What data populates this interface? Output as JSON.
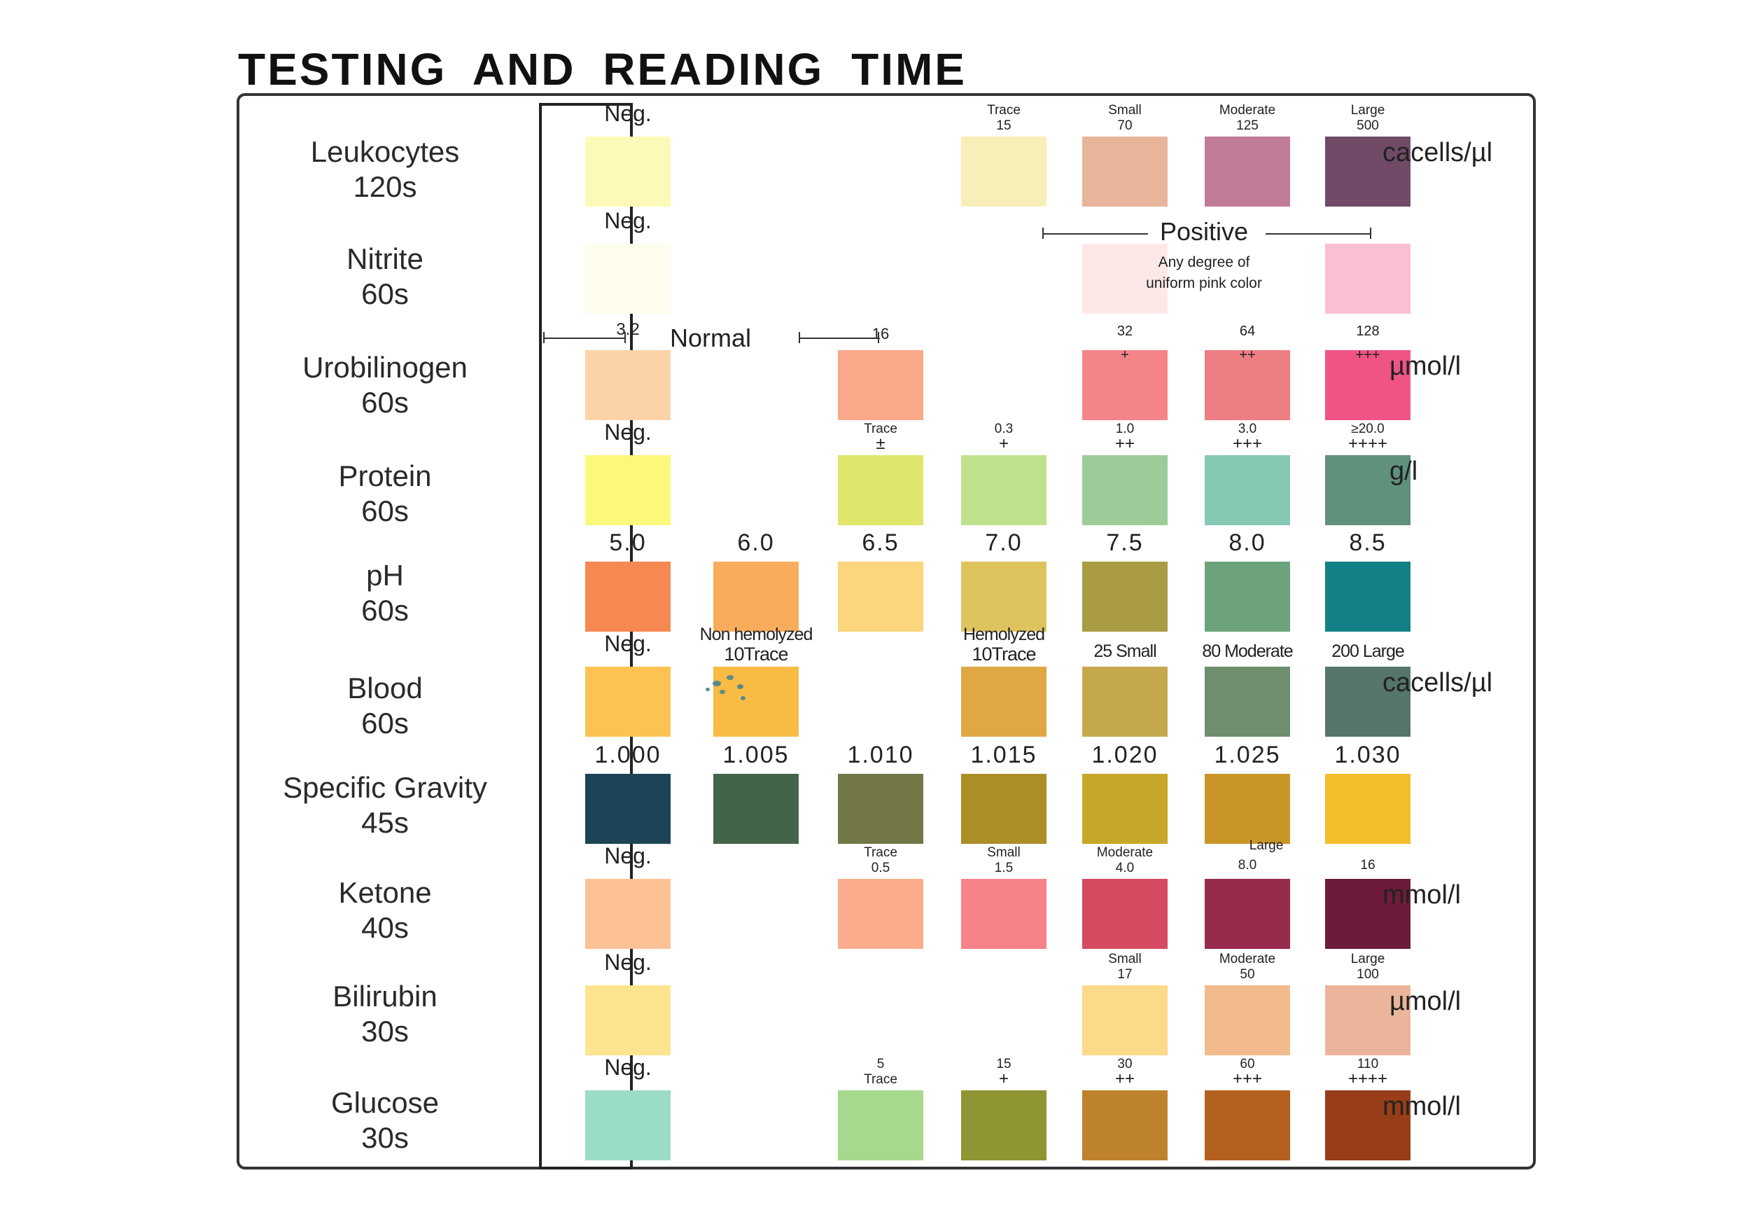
{
  "title": "TESTING AND READING TIME",
  "neg": "Neg.",
  "normal_label": "Normal",
  "nitrite_positive": {
    "label": "Positive",
    "desc_line1": "Any degree of",
    "desc_line2": "uniform pink color"
  },
  "rows": [
    {
      "name": "Leukocytes",
      "time": "120s",
      "unit": "cacells/µl",
      "neg_label": "Neg.",
      "neg_color": "#fdfab9",
      "swatches": [
        {
          "line1": "Trace",
          "line2": "15",
          "color": "#f8efb8"
        },
        {
          "line1": "Small",
          "line2": "70",
          "color": "#e8b59b"
        },
        {
          "line1": "Moderate",
          "line2": "125",
          "color": "#c07b98"
        },
        {
          "line1": "Large",
          "line2": "500",
          "color": "#714a68"
        }
      ]
    },
    {
      "name": "Nitrite",
      "time": "60s",
      "unit": "",
      "neg_label": "Neg.",
      "neg_color": "#fefdee",
      "swatches": [
        {
          "color": "#fde8e8"
        },
        {
          "color": "#f9bfd3"
        }
      ]
    },
    {
      "name": "Urobilinogen",
      "time": "60s",
      "unit": "µmol/l",
      "neg_label": "3.2",
      "neg_color": "#fcd3a8",
      "swatches": [
        {
          "line1": "16",
          "color": "#f9a98a"
        },
        {
          "line1": "32",
          "line2": "+",
          "color": "#f58489"
        },
        {
          "line1": "64",
          "line2": "++",
          "color": "#ee7e84"
        },
        {
          "line1": "128",
          "line2": "+++",
          "color": "#ef5485"
        }
      ]
    },
    {
      "name": "Protein",
      "time": "60s",
      "unit": "g/l",
      "neg_label": "Neg.",
      "neg_color": "#fbf87c",
      "swatches": [
        {
          "line1": "Trace",
          "line2": "±",
          "color": "#dfe66b"
        },
        {
          "line1": "0.3",
          "line2": "+",
          "color": "#c0e18c"
        },
        {
          "line1": "1.0",
          "line2": "++",
          "color": "#9dcc98"
        },
        {
          "line1": "3.0",
          "line2": "+++",
          "color": "#85c8b4"
        },
        {
          "line1": "≥20.0",
          "line2": "++++",
          "color": "#5f917c"
        }
      ]
    },
    {
      "name": "pH",
      "time": "60s",
      "unit": "",
      "swatches": [
        {
          "line1": "5.0",
          "color": "#f68852"
        },
        {
          "line1": "6.0",
          "color": "#f9ad5c"
        },
        {
          "line1": "6.5",
          "color": "#fcd67c"
        },
        {
          "line1": "7.0",
          "color": "#dfc45e"
        },
        {
          "line1": "7.5",
          "color": "#a99c43"
        },
        {
          "line1": "8.0",
          "color": "#6da37c"
        },
        {
          "line1": "8.5",
          "color": "#128087"
        }
      ]
    },
    {
      "name": "Blood",
      "time": "60s",
      "unit": "cacells/µl",
      "neg_label": "Neg.",
      "neg_color": "#fcc352",
      "swatches": [
        {
          "line1": "Non hemolyzed",
          "line2": "10Trace",
          "color": "#f8bb44"
        },
        {
          "line1": "Hemolyzed",
          "line2": "10Trace",
          "color": "#dfa843"
        },
        {
          "line1": "25 Small",
          "color": "#c5a84d"
        },
        {
          "line1": "80 Moderate",
          "color": "#6e8e6e"
        },
        {
          "line1": "200 Large",
          "color": "#56766a"
        }
      ]
    },
    {
      "name": "Specific Gravity",
      "time": "45s",
      "unit": "",
      "swatches": [
        {
          "line1": "1.000",
          "color": "#1c4456"
        },
        {
          "line1": "1.005",
          "color": "#436449"
        },
        {
          "line1": "1.010",
          "color": "#737746"
        },
        {
          "line1": "1.015",
          "color": "#ab8e25"
        },
        {
          "line1": "1.020",
          "color": "#c6a727"
        },
        {
          "line1": "1.025",
          "color": "#ca9528"
        },
        {
          "line1": "1.030",
          "color": "#f4bd2b"
        }
      ]
    },
    {
      "name": "Ketone",
      "time": "40s",
      "unit": "mmol/l",
      "neg_label": "Neg.",
      "neg_color": "#fcc194",
      "swatches": [
        {
          "line1": "Trace",
          "line2": "0.5",
          "color": "#fbac8d"
        },
        {
          "line1": "Small",
          "line2": "1.5",
          "color": "#f68389"
        },
        {
          "line1": "Moderate",
          "line2": "4.0",
          "color": "#d54b61"
        },
        {
          "line1": "8.0",
          "color": "#972b4c"
        },
        {
          "line1": "16",
          "color": "#6e1a3b"
        }
      ],
      "large_label": "Large"
    },
    {
      "name": "Bilirubin",
      "time": "30s",
      "unit": "µmol/l",
      "neg_label": "Neg.",
      "neg_color": "#fde590",
      "swatches": [
        {
          "line1": "Small",
          "line2": "17",
          "color": "#fdd98a"
        },
        {
          "line1": "Moderate",
          "line2": "50",
          "color": "#f2bb8d"
        },
        {
          "line1": "Large",
          "line2": "100",
          "color": "#ebb59b"
        }
      ]
    },
    {
      "name": "Glucose",
      "time": "30s",
      "unit": "mmol/l",
      "neg_label": "Neg.",
      "neg_color": "#9bdcc8",
      "swatches": [
        {
          "line1": "5",
          "line2": "Trace",
          "color": "#a6d88d"
        },
        {
          "line1": "15",
          "line2": "+",
          "color": "#8e9533"
        },
        {
          "line1": "30",
          "line2": "++",
          "color": "#be822c"
        },
        {
          "line1": "60",
          "line2": "+++",
          "color": "#b4601f"
        },
        {
          "line1": "110",
          "line2": "++++",
          "color": "#973d18"
        }
      ]
    }
  ]
}
